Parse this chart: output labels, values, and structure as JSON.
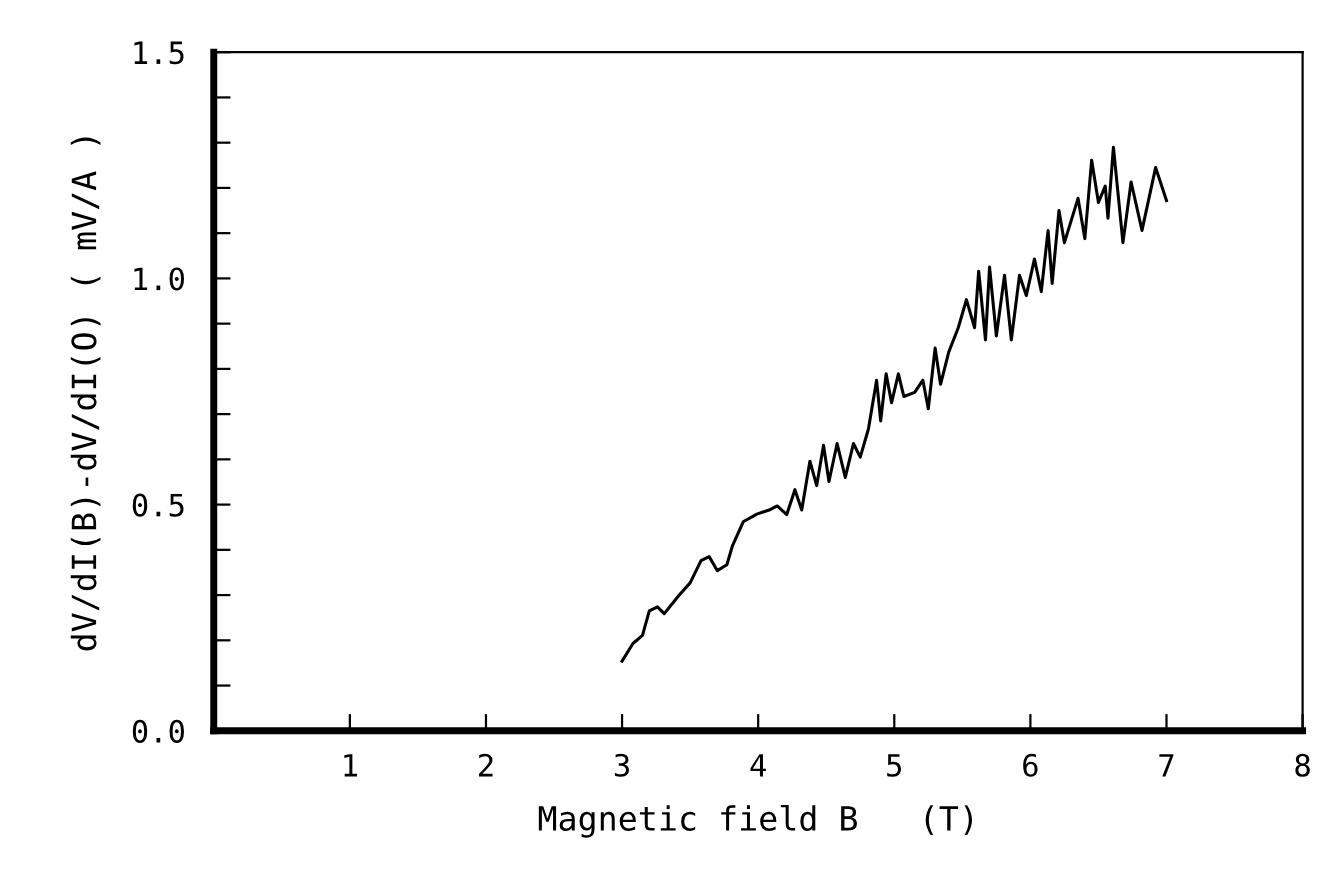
{
  "chart_data": {
    "type": "line",
    "xlabel": "Magnetic field B   (T)",
    "ylabel": "dV/dI(B)-dV/dI(O) ( mV/A )",
    "xlim": [
      0,
      8
    ],
    "xticks": [
      1,
      2,
      3,
      4,
      5,
      6,
      7,
      8
    ],
    "ylim": [
      0,
      1.5
    ],
    "yticks": [
      {
        "value": 0,
        "label": "0.0"
      },
      {
        "value": 0.1,
        "label": null
      },
      {
        "value": 0.2,
        "label": null
      },
      {
        "value": 0.3,
        "label": null
      },
      {
        "value": 0.4,
        "label": null
      },
      {
        "value": 0.5,
        "label": "0.5"
      },
      {
        "value": 0.6,
        "label": null
      },
      {
        "value": 0.7,
        "label": null
      },
      {
        "value": 0.8,
        "label": null
      },
      {
        "value": 0.9,
        "label": null
      },
      {
        "value": 1.0,
        "label": "1.0"
      },
      {
        "value": 1.1,
        "label": null
      },
      {
        "value": 1.2,
        "label": null
      },
      {
        "value": 1.3,
        "label": null
      },
      {
        "value": 1.4,
        "label": null
      },
      {
        "value": 1.5,
        "label": "1.5"
      }
    ],
    "grid": false,
    "legend": false,
    "marker": "none",
    "line_style": "solid",
    "series": [
      {
        "color": "#000000",
        "x": [
          3.0,
          3.08,
          3.15,
          3.2,
          3.26,
          3.31,
          3.42,
          3.5,
          3.58,
          3.64,
          3.7,
          3.77,
          3.81,
          3.89,
          3.99,
          4.08,
          4.14,
          4.21,
          4.27,
          4.32,
          4.38,
          4.43,
          4.48,
          4.52,
          4.58,
          4.64,
          4.7,
          4.75,
          4.81,
          4.87,
          4.9,
          4.94,
          4.98,
          5.03,
          5.07,
          5.15,
          5.21,
          5.25,
          5.3,
          5.34,
          5.4,
          5.47,
          5.53,
          5.59,
          5.62,
          5.67,
          5.7,
          5.75,
          5.81,
          5.86,
          5.92,
          5.97,
          6.03,
          6.08,
          6.13,
          6.16,
          6.21,
          6.25,
          6.35,
          6.4,
          6.45,
          6.5,
          6.55,
          6.57,
          6.61,
          6.68,
          6.74,
          6.82,
          6.92,
          7.0
        ],
        "values": [
          0.154,
          0.193,
          0.211,
          0.265,
          0.274,
          0.259,
          0.3,
          0.327,
          0.376,
          0.385,
          0.354,
          0.367,
          0.408,
          0.462,
          0.479,
          0.488,
          0.497,
          0.478,
          0.533,
          0.488,
          0.596,
          0.542,
          0.631,
          0.551,
          0.635,
          0.56,
          0.635,
          0.605,
          0.667,
          0.775,
          0.685,
          0.789,
          0.725,
          0.789,
          0.739,
          0.748,
          0.775,
          0.712,
          0.846,
          0.766,
          0.837,
          0.891,
          0.953,
          0.891,
          1.016,
          0.864,
          1.025,
          0.873,
          1.007,
          0.864,
          1.007,
          0.962,
          1.043,
          0.971,
          1.106,
          0.989,
          1.15,
          1.079,
          1.177,
          1.088,
          1.261,
          1.168,
          1.204,
          1.133,
          1.29,
          1.079,
          1.213,
          1.106,
          1.245,
          1.172
        ]
      }
    ]
  }
}
